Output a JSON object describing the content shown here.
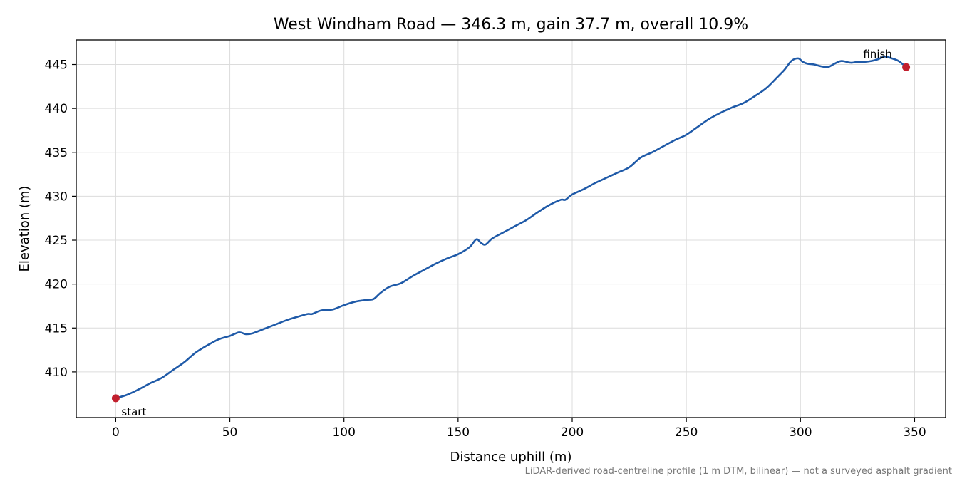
{
  "chart_data": {
    "type": "line",
    "title": "West Windham Road — 346.3 m, gain 37.7 m, overall 10.9%",
    "xlabel": "Distance uphill (m)",
    "ylabel": "Elevation (m)",
    "xlim": [
      -17.3,
      363.6
    ],
    "ylim": [
      404.8,
      447.8
    ],
    "xticks": [
      0,
      50,
      100,
      150,
      200,
      250,
      300,
      350
    ],
    "yticks": [
      410,
      415,
      420,
      425,
      430,
      435,
      440,
      445
    ],
    "grid": true,
    "line_color": "#1f5aa8",
    "marker_color": "#c21f2e",
    "series": [
      {
        "x": [
          0,
          5,
          10,
          15,
          20,
          25,
          30,
          35,
          40,
          45,
          50,
          54,
          57,
          60,
          65,
          70,
          75,
          80,
          84,
          86,
          90,
          95,
          100,
          105,
          110,
          113,
          116,
          120,
          125,
          130,
          135,
          140,
          145,
          150,
          155,
          158,
          160,
          162,
          165,
          170,
          175,
          180,
          185,
          190,
          195,
          197,
          200,
          205,
          210,
          215,
          220,
          225,
          230,
          235,
          240,
          245,
          250,
          255,
          260,
          265,
          270,
          275,
          280,
          285,
          290,
          293,
          296,
          299,
          301,
          303,
          306,
          309,
          312,
          315,
          318,
          322,
          325,
          328,
          331,
          334,
          337,
          340,
          343,
          346.3
        ],
        "y": [
          407.0,
          407.4,
          408.0,
          408.7,
          409.3,
          410.2,
          411.1,
          412.2,
          413.0,
          413.7,
          414.1,
          414.5,
          414.3,
          414.4,
          414.9,
          415.4,
          415.9,
          416.3,
          416.6,
          416.6,
          417.0,
          417.1,
          417.6,
          418.0,
          418.2,
          418.3,
          419.0,
          419.7,
          420.1,
          420.9,
          421.6,
          422.3,
          422.9,
          423.4,
          424.2,
          425.1,
          424.7,
          424.5,
          425.2,
          425.9,
          426.6,
          427.3,
          428.2,
          429.0,
          429.6,
          429.6,
          430.2,
          430.8,
          431.5,
          432.1,
          432.7,
          433.3,
          434.4,
          435.0,
          435.7,
          436.4,
          437.0,
          437.9,
          438.8,
          439.5,
          440.1,
          440.6,
          441.4,
          442.3,
          443.6,
          444.4,
          445.4,
          445.7,
          445.3,
          445.1,
          445.0,
          444.8,
          444.7,
          445.1,
          445.4,
          445.2,
          445.3,
          445.3,
          445.4,
          445.6,
          445.9,
          445.7,
          445.4,
          444.7
        ]
      }
    ],
    "annotations": [
      {
        "text": "start",
        "x": 0,
        "y": 407.0
      },
      {
        "text": "finish",
        "x": 346.3,
        "y": 444.7
      }
    ],
    "footnote": "LiDAR-derived road-centreline profile (1 m DTM, bilinear) — not a surveyed asphalt gradient"
  }
}
